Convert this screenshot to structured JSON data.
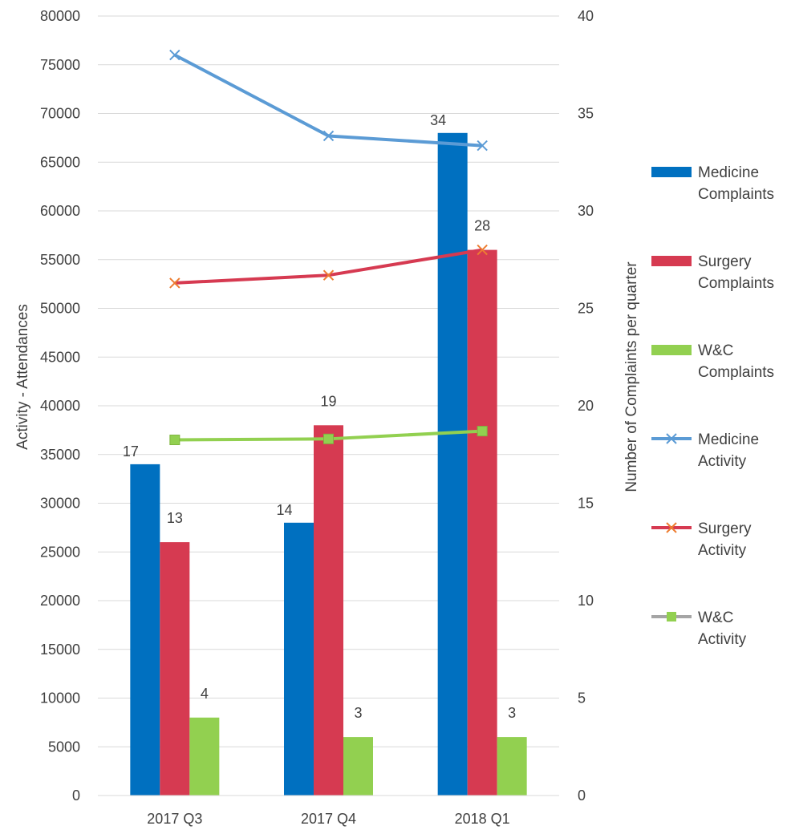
{
  "chart_data": {
    "type": "bar",
    "categories": [
      "2017 Q3",
      "2017 Q4",
      "2018 Q1"
    ],
    "bar_series": [
      {
        "name": "Medicine Complaints",
        "legend_lines": [
          "Medicine",
          "Complaints"
        ],
        "color": "#0070c0",
        "values": [
          17,
          14,
          34
        ],
        "axis": "right"
      },
      {
        "name": "Surgery Complaints",
        "legend_lines": [
          "Surgery",
          "Complaints"
        ],
        "color": "#d63a51",
        "values": [
          13,
          19,
          28
        ],
        "axis": "right"
      },
      {
        "name": "W&C Complaints",
        "legend_lines": [
          "W&C",
          "Complaints"
        ],
        "color": "#92d050",
        "values": [
          4,
          3,
          3
        ],
        "axis": "right"
      }
    ],
    "line_series": [
      {
        "name": "Medicine Activity",
        "legend_lines": [
          "Medicine",
          "Activity"
        ],
        "color": "#5b9bd5",
        "marker": "x",
        "marker_color": "#5b9bd5",
        "values": [
          76000,
          67700,
          66700
        ],
        "axis": "left"
      },
      {
        "name": "Surgery Activity",
        "legend_lines": [
          "Surgery",
          "Activity"
        ],
        "color": "#d63a51",
        "marker": "x",
        "marker_color": "#ed7d31",
        "values": [
          52600,
          53400,
          56000
        ],
        "axis": "left"
      },
      {
        "name": "W&C Activity",
        "legend_lines": [
          "W&C",
          "Activity"
        ],
        "color": "#92d050",
        "legend_line_color": "#a5a5a5",
        "marker": "square",
        "marker_color": "#92d050",
        "values": [
          36500,
          36600,
          37400
        ],
        "axis": "left"
      }
    ],
    "y_left": {
      "label": "Activity - Attendances",
      "range": [
        0,
        80000
      ],
      "ticks": [
        "0",
        "5000",
        "10000",
        "15000",
        "20000",
        "25000",
        "30000",
        "35000",
        "40000",
        "45000",
        "50000",
        "55000",
        "60000",
        "65000",
        "70000",
        "75000",
        "80000"
      ]
    },
    "y_right": {
      "label": "Number of  Complaints per quarter",
      "range": [
        0,
        40
      ],
      "ticks": [
        "0",
        "5",
        "10",
        "15",
        "20",
        "25",
        "30",
        "35",
        "40"
      ]
    },
    "grid": true,
    "legend": "right",
    "data_labels": true
  }
}
